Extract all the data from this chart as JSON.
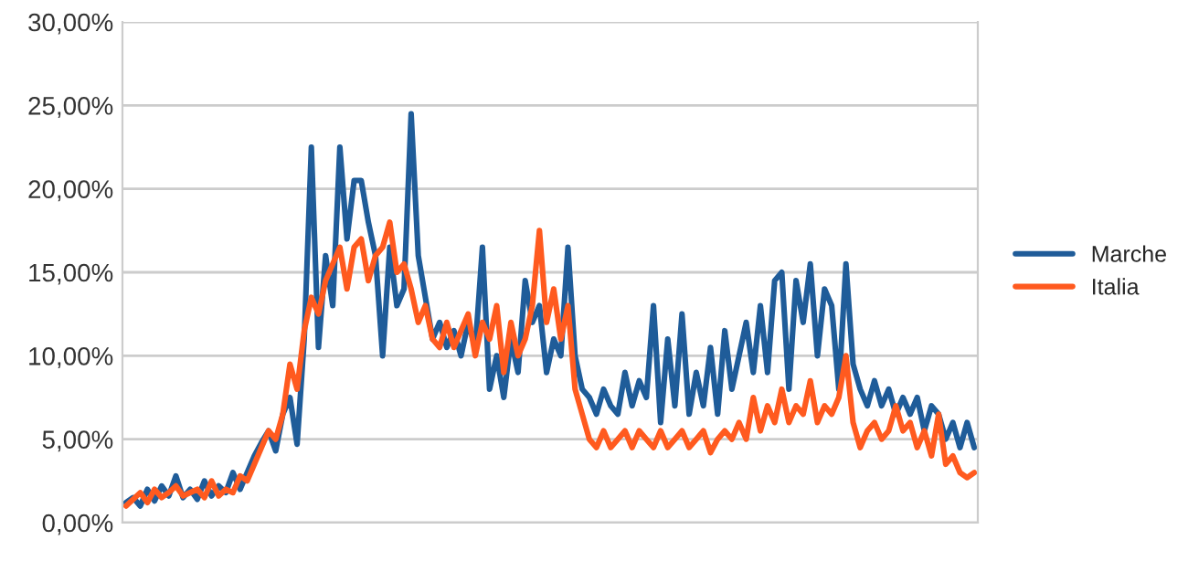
{
  "chart_data": {
    "type": "line",
    "categories": [
      null,
      null,
      null,
      null,
      null,
      null,
      null,
      null,
      null,
      null,
      null,
      null,
      null,
      null,
      null,
      null,
      null,
      null,
      null,
      null,
      null,
      null,
      null,
      null,
      null,
      null,
      null,
      null,
      null,
      null,
      null,
      null,
      null,
      null,
      null,
      null,
      null,
      null,
      null,
      null,
      null,
      null,
      null,
      null,
      null,
      null,
      null,
      null,
      null,
      null,
      null,
      null,
      null,
      null,
      null,
      null,
      null,
      null,
      null,
      null,
      null,
      null,
      null,
      null,
      null,
      null,
      null,
      null,
      null,
      null,
      null,
      null,
      null,
      null,
      null,
      null,
      null,
      null,
      null,
      null,
      null,
      null,
      null,
      null,
      null,
      null,
      null,
      null,
      null,
      null,
      null,
      null,
      null,
      null,
      null,
      null,
      null,
      null,
      null,
      null,
      null,
      null,
      null,
      null,
      null,
      null,
      null,
      null,
      null,
      null,
      null,
      null,
      null,
      null,
      null,
      null,
      null,
      null,
      null,
      null
    ],
    "series": [
      {
        "name": "Marche",
        "color": "#1f5c99",
        "values": [
          1.2,
          1.5,
          1.0,
          2.0,
          1.3,
          2.2,
          1.6,
          2.8,
          1.5,
          2.0,
          1.4,
          2.5,
          1.6,
          2.2,
          1.8,
          3.0,
          2.0,
          3.0,
          4.0,
          4.8,
          5.5,
          4.3,
          6.5,
          7.5,
          4.7,
          11.0,
          22.5,
          10.5,
          16,
          13,
          22.5,
          17,
          20.5,
          20.5,
          18,
          16,
          10,
          16.5,
          13,
          14,
          24.5,
          16,
          13.5,
          11,
          12,
          10.5,
          11.5,
          10,
          12,
          10.5,
          16.5,
          8,
          10,
          7.5,
          11,
          9,
          14.5,
          12,
          13,
          9,
          11,
          10,
          16.5,
          10,
          8,
          7.5,
          6.5,
          8,
          7,
          6.5,
          9,
          7,
          8.5,
          7.5,
          13,
          6,
          11,
          7,
          12.5,
          6.5,
          9,
          7,
          10.5,
          6.5,
          11.5,
          8,
          10,
          12,
          9,
          13,
          9,
          14.5,
          15,
          8,
          14.5,
          12,
          15.5,
          10,
          14,
          13,
          8,
          15.5,
          9.5,
          8,
          7,
          8.5,
          7,
          8,
          6.5,
          7.5,
          6.5,
          7.5,
          5.5,
          7,
          6.5,
          5,
          6,
          4.5,
          6,
          4.5
        ]
      },
      {
        "name": "Italia",
        "color": "#ff5a1f",
        "values": [
          1.0,
          1.4,
          1.8,
          1.2,
          2.0,
          1.5,
          1.8,
          2.2,
          1.6,
          1.8,
          2.0,
          1.5,
          2.5,
          1.6,
          2.0,
          1.8,
          2.8,
          2.5,
          3.5,
          4.5,
          5.5,
          5.0,
          6.5,
          9.5,
          8.0,
          11.5,
          13.5,
          12.5,
          14.5,
          15.5,
          16.5,
          14,
          16.5,
          17,
          14.5,
          16,
          16.5,
          18,
          15,
          15.5,
          14,
          12,
          13,
          11,
          10.5,
          12,
          10.5,
          11.5,
          12.5,
          10,
          12,
          11,
          13,
          9,
          12,
          10,
          11,
          13,
          17.5,
          12,
          14,
          11,
          13,
          8,
          6.5,
          5,
          4.5,
          5.5,
          4.5,
          5,
          5.5,
          4.5,
          5.5,
          5,
          4.5,
          5.5,
          4.5,
          5,
          5.5,
          4.5,
          5,
          5.5,
          4.2,
          5,
          5.5,
          5,
          6,
          5,
          7.5,
          5.5,
          7,
          6,
          8,
          6,
          7,
          6.5,
          8.5,
          6,
          7,
          6.5,
          7.5,
          10,
          6,
          4.5,
          5.5,
          6,
          5,
          5.5,
          7,
          5.5,
          6,
          4.5,
          5.5,
          4,
          6.5,
          3.5,
          4,
          3,
          2.7,
          3
        ]
      }
    ],
    "ylim": [
      0,
      30
    ],
    "yticks": [
      {
        "value": 0,
        "label": "0,00%"
      },
      {
        "value": 5,
        "label": "5,00%"
      },
      {
        "value": 10,
        "label": "10,00%"
      },
      {
        "value": 15,
        "label": "15,00%"
      },
      {
        "value": 20,
        "label": "20,00%"
      },
      {
        "value": 25,
        "label": "25,00%"
      },
      {
        "value": 30,
        "label": "30,00%"
      }
    ],
    "grid": "y",
    "legend": "right",
    "marker": "none",
    "line_style": "solid"
  }
}
